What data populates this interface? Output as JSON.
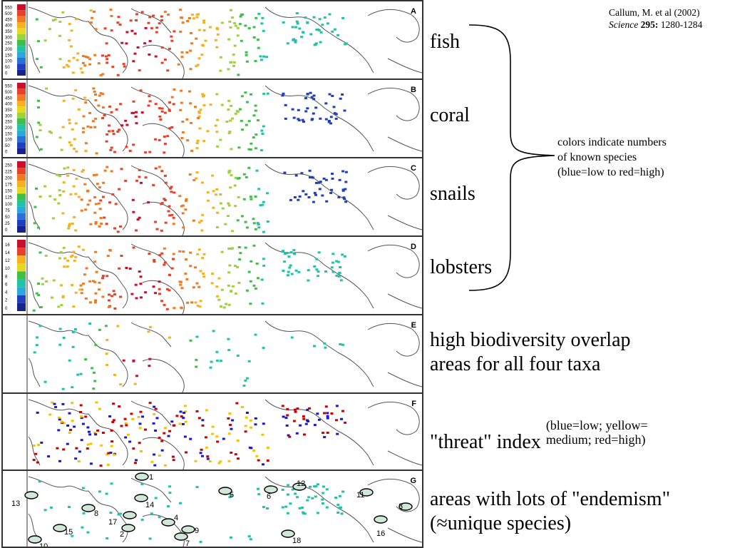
{
  "citation": {
    "authors": "Callum, M. et al (2002)",
    "journal": "Science",
    "volume": "295:",
    "pages": "1280-1284"
  },
  "panels": [
    {
      "letter": "A",
      "scale": [
        "550",
        "500",
        "450",
        "400",
        "350",
        "300",
        "250",
        "200",
        "150",
        "100",
        "50",
        "0"
      ]
    },
    {
      "letter": "B",
      "scale": [
        "550",
        "500",
        "450",
        "400",
        "350",
        "300",
        "250",
        "200",
        "150",
        "100",
        "50",
        "0"
      ]
    },
    {
      "letter": "C",
      "scale": [
        "250",
        "225",
        "200",
        "175",
        "150",
        "125",
        "100",
        "75",
        "50",
        "25",
        "0"
      ]
    },
    {
      "letter": "D",
      "scale": [
        "16",
        "14",
        "12",
        "10",
        "8",
        "6",
        "4",
        "2",
        "0"
      ]
    },
    {
      "letter": "E",
      "scale": []
    },
    {
      "letter": "F",
      "scale": []
    },
    {
      "letter": "G",
      "scale": []
    }
  ],
  "endemism_areas": [
    "1",
    "2",
    "3",
    "4",
    "5",
    "6",
    "7",
    "8",
    "9",
    "10",
    "11",
    "12",
    "13",
    "14",
    "15",
    "16",
    "17",
    "18"
  ],
  "labels": {
    "fish": "fish",
    "coral": "coral",
    "snails": "snails",
    "lobsters": "lobsters",
    "overlap_line1": "high biodiversity overlap",
    "overlap_line2": "areas for all four taxa",
    "threat": "\"threat\" index",
    "threat_note_line1": "(blue=low; yellow=",
    "threat_note_line2": "medium; red=high)",
    "endemism_line1": "areas with lots of \"endemism\"",
    "endemism_line2": "(≈unique species)"
  },
  "brace_note": {
    "line1": "colors indicate numbers",
    "line2": "of known species",
    "line3": "(blue=low to red=high)"
  }
}
